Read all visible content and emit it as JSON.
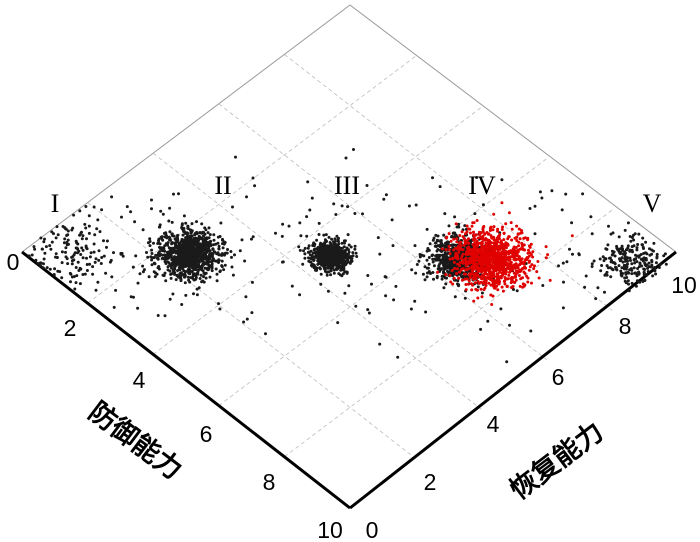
{
  "chart_data": {
    "type": "scatter",
    "xlabel": "防御能力",
    "ylabel": "恢复能力",
    "xlim": [
      0,
      10
    ],
    "ylim": [
      0,
      10
    ],
    "x_ticks": [
      "0",
      "2",
      "4",
      "6",
      "8",
      "10"
    ],
    "y_ticks": [
      "0",
      "2",
      "4",
      "6",
      "8",
      "10"
    ],
    "grid": true,
    "regions": [
      "I",
      "II",
      "III",
      "IV",
      "V"
    ],
    "colors": {
      "black_series": "#1a1a1a",
      "red_series": "#e00000",
      "frame": "#000000",
      "grid": "#bdbdbd"
    },
    "clusters": [
      {
        "region": "I",
        "color": "black",
        "center": [
          0.7,
          0.7
        ],
        "spread": 0.55,
        "count": 160
      },
      {
        "region": "II",
        "color": "black",
        "center": [
          2.55,
          2.55
        ],
        "spread": 0.34,
        "count": 900
      },
      {
        "region": "III",
        "color": "black",
        "center": [
          4.7,
          4.7
        ],
        "spread": 0.2,
        "count": 700
      },
      {
        "region": "IV",
        "color": "black",
        "center": [
          6.65,
          6.65
        ],
        "spread": 0.32,
        "count": 650
      },
      {
        "region": "IV",
        "color": "red",
        "center": [
          7.15,
          7.15
        ],
        "spread": 0.4,
        "count": 1000
      },
      {
        "region": "V",
        "color": "black",
        "center": [
          9.3,
          9.3
        ],
        "spread": 0.35,
        "count": 220
      },
      {
        "region": "background",
        "color": "black",
        "center": [
          5.0,
          5.0
        ],
        "spread": 3.0,
        "count": 250
      }
    ]
  }
}
